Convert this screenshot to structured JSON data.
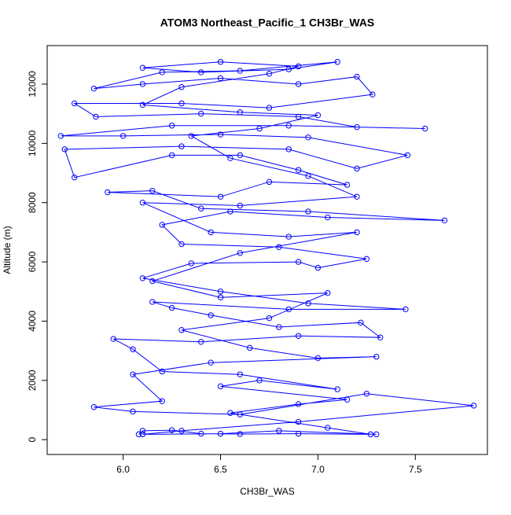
{
  "chart_data": {
    "type": "line",
    "title": "ATOM3 Northeast_Pacific_1 CH3Br_WAS",
    "x_label": "CH3Br_WAS",
    "y_label": "Altitude (m)",
    "color": "#0000ff",
    "markers": true,
    "x": [
      6.08,
      6.1,
      6.25,
      6.4,
      6.6,
      6.9,
      7.27,
      7.05,
      6.55,
      6.9,
      7.15,
      6.5,
      6.7,
      7.1,
      6.6,
      6.2,
      6.05,
      5.95,
      6.4,
      6.9,
      7.32,
      7.22,
      6.8,
      6.45,
      6.25,
      6.15,
      6.85,
      7.45,
      6.95,
      6.5,
      6.1,
      6.35,
      6.9,
      7.0,
      7.25,
      6.8,
      6.3,
      6.2,
      6.55,
      7.05,
      7.65,
      6.95,
      6.4,
      6.15,
      5.92,
      6.5,
      6.75,
      7.15,
      6.9,
      6.6,
      6.25,
      5.75,
      5.7,
      6.3,
      6.85,
      7.2,
      7.46,
      6.95,
      6.5,
      6.0,
      5.68,
      6.25,
      6.85,
      7.55,
      7.2,
      6.9,
      6.4,
      5.86,
      5.75,
      6.3,
      6.75,
      7.28,
      7.2,
      6.9,
      6.5,
      6.1,
      5.85,
      6.2,
      6.6,
      7.1,
      6.85,
      6.4,
      6.1,
      6.5,
      6.9,
      6.75,
      6.3,
      6.1,
      6.6,
      7.0,
      6.7,
      6.35,
      6.55,
      6.95,
      7.2,
      6.6,
      6.1,
      6.45,
      6.85,
      7.2,
      6.6,
      6.15,
      6.5,
      7.05,
      6.75,
      6.3,
      6.65,
      7.0,
      7.3,
      6.45,
      6.05,
      6.2,
      5.85,
      6.05,
      6.6,
      7.25,
      7.8,
      6.9,
      6.3,
      6.1,
      6.5,
      6.8,
      7.3
    ],
    "values": [
      180,
      300,
      320,
      200,
      190,
      200,
      180,
      400,
      900,
      1200,
      1350,
      1800,
      2000,
      1700,
      2200,
      2300,
      3050,
      3400,
      3300,
      3500,
      3450,
      3950,
      3800,
      4200,
      4450,
      4650,
      4400,
      4400,
      4600,
      5000,
      5450,
      5950,
      6000,
      5800,
      6100,
      6500,
      6600,
      7250,
      7700,
      7500,
      7400,
      7700,
      7800,
      8400,
      8350,
      8200,
      8700,
      8600,
      9100,
      9600,
      9600,
      8850,
      9800,
      9900,
      9800,
      9150,
      9600,
      10200,
      10300,
      10250,
      10250,
      10600,
      10600,
      10500,
      10550,
      10900,
      11000,
      10900,
      11350,
      11350,
      11200,
      11650,
      12250,
      12000,
      12200,
      12000,
      11850,
      12400,
      12450,
      12750,
      12500,
      12400,
      12550,
      12750,
      12600,
      12350,
      11900,
      11300,
      11050,
      10950,
      10500,
      10250,
      9500,
      8900,
      8200,
      7900,
      8000,
      7000,
      6850,
      7000,
      6300,
      5350,
      4800,
      4950,
      4100,
      3700,
      3100,
      2750,
      2800,
      2600,
      2200,
      1300,
      1100,
      950,
      850,
      1550,
      1150,
      600,
      300,
      180,
      200,
      300,
      180
    ],
    "xlim": [
      5.61,
      7.87
    ],
    "ylim": [
      -500,
      13300
    ],
    "xticks": [
      {
        "value": 6,
        "label": "6.0"
      },
      6.5,
      {
        "value": 7,
        "label": "7.0"
      },
      7.5
    ],
    "yticks": [
      0,
      2000,
      4000,
      6000,
      8000,
      10000,
      12000
    ]
  }
}
